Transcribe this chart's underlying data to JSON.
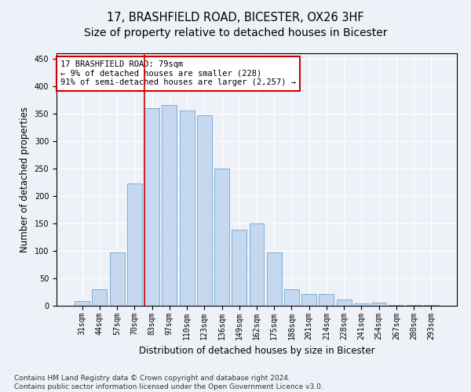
{
  "title": "17, BRASHFIELD ROAD, BICESTER, OX26 3HF",
  "subtitle": "Size of property relative to detached houses in Bicester",
  "xlabel": "Distribution of detached houses by size in Bicester",
  "ylabel": "Number of detached properties",
  "categories": [
    "31sqm",
    "44sqm",
    "57sqm",
    "70sqm",
    "83sqm",
    "97sqm",
    "110sqm",
    "123sqm",
    "136sqm",
    "149sqm",
    "162sqm",
    "175sqm",
    "188sqm",
    "201sqm",
    "214sqm",
    "228sqm",
    "241sqm",
    "254sqm",
    "267sqm",
    "280sqm",
    "293sqm"
  ],
  "values": [
    8,
    30,
    97,
    222,
    360,
    365,
    355,
    347,
    250,
    138,
    150,
    97,
    30,
    22,
    22,
    11,
    4,
    5,
    2,
    2,
    2
  ],
  "bar_color": "#c5d8f0",
  "bar_edge_color": "#7bafd4",
  "highlight_line_index": 4,
  "highlight_line_color": "#cc0000",
  "annotation_text": "17 BRASHFIELD ROAD: 79sqm\n← 9% of detached houses are smaller (228)\n91% of semi-detached houses are larger (2,257) →",
  "annotation_box_color": "#ffffff",
  "annotation_box_edge": "#cc0000",
  "ylim": [
    0,
    460
  ],
  "yticks": [
    0,
    50,
    100,
    150,
    200,
    250,
    300,
    350,
    400,
    450
  ],
  "footer_text": "Contains HM Land Registry data © Crown copyright and database right 2024.\nContains public sector information licensed under the Open Government Licence v3.0.",
  "background_color": "#eef2f8",
  "plot_background": "#eef2f8",
  "grid_color": "#ffffff",
  "title_fontsize": 10.5,
  "xlabel_fontsize": 8.5,
  "ylabel_fontsize": 8.5,
  "tick_fontsize": 7,
  "footer_fontsize": 6.5,
  "annotation_fontsize": 7.5
}
